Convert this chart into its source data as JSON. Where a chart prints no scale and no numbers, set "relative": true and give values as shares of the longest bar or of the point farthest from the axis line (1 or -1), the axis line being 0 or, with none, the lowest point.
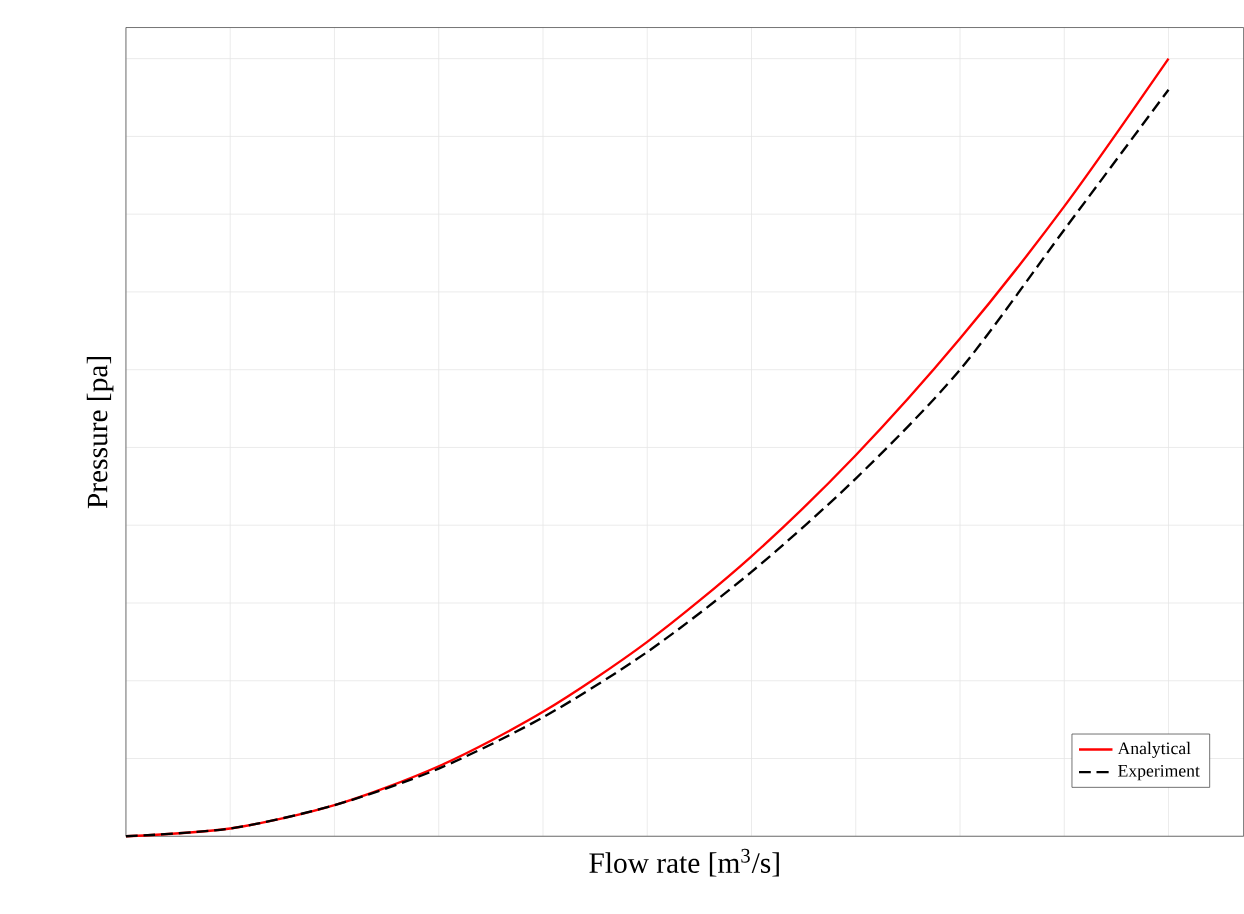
{
  "chart_data": {
    "type": "line",
    "relative": true,
    "xlabel": "Flow rate [m$^{3}$/s]",
    "ylabel": "Pressure [pa]",
    "categories": [
      null,
      null,
      null,
      null,
      null,
      null,
      null,
      null,
      null,
      null,
      null
    ],
    "series": [
      {
        "name": "Analytical",
        "color": "#ff0000",
        "line_style": "solid",
        "values": [
          0,
          0.01,
          0.04,
          0.09,
          0.16,
          0.25,
          0.36,
          0.49,
          0.64,
          0.81,
          1.0
        ]
      },
      {
        "name": "Experiment",
        "color": "#000000",
        "line_style": "dashed",
        "values": [
          0,
          0.01,
          0.04,
          0.087,
          0.153,
          0.237,
          0.34,
          0.46,
          0.6,
          0.78,
          0.96
        ]
      }
    ],
    "grid": true,
    "legend": "bottom right",
    "marker": "none"
  }
}
